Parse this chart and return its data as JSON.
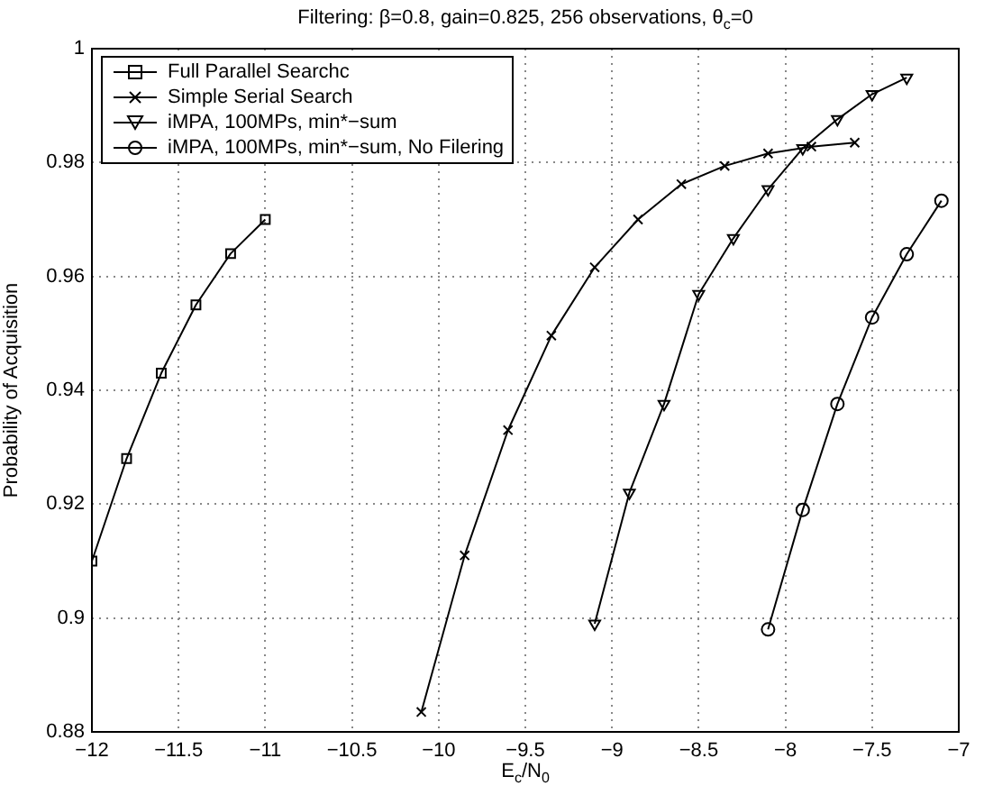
{
  "chart_data": {
    "type": "line",
    "title": "Filtering: β=0.8, gain=0.825, 256 observations, θ$_{c}$=0",
    "xlabel": "E$_{c}$/N$_{0}$",
    "ylabel": "Probability of Acquisition",
    "xlim": [
      -12,
      -7
    ],
    "xticks": [
      -12,
      -11.5,
      -11,
      -10.5,
      -10,
      -9.5,
      -9,
      -8.5,
      -8,
      -7.5,
      -7
    ],
    "ylim": [
      0.88,
      1
    ],
    "yticks": [
      0.88,
      0.9,
      0.92,
      0.94,
      0.96,
      0.98,
      1
    ],
    "grid": true,
    "legend": "top left",
    "series": [
      {
        "name": "Full Parallel Searchc",
        "color": "#000000",
        "marker": "square",
        "x": [
          -12,
          -11.8,
          -11.6,
          -11.4,
          -11.2,
          -11
        ],
        "values": [
          0.91,
          0.928,
          0.943,
          0.955,
          0.964,
          0.97
        ]
      },
      {
        "name": "Simple Serial Search",
        "color": "#000000",
        "marker": "cross",
        "x": [
          -10.1,
          -9.85,
          -9.6,
          -9.35,
          -9.1,
          -8.85,
          -8.6,
          -8.35,
          -8.1,
          -7.85,
          -7.6
        ],
        "values": [
          0.8835,
          0.911,
          0.933,
          0.9496,
          0.9616,
          0.97,
          0.9762,
          0.9794,
          0.9816,
          0.9828,
          0.9835
        ]
      },
      {
        "name": "iMPA, 100MPs, min*−sum",
        "color": "#000000",
        "marker": "triangle",
        "x": [
          -9.1,
          -8.9,
          -8.7,
          -8.5,
          -8.3,
          -8.1,
          -7.9,
          -7.7,
          -7.5,
          -7.3
        ],
        "values": [
          0.899,
          0.922,
          0.9376,
          0.9569,
          0.9667,
          0.9753,
          0.9825,
          0.9876,
          0.992,
          0.9949
        ]
      },
      {
        "name": "iMPA, 100MPs, min*−sum, No Filering",
        "color": "#000000",
        "marker": "circle",
        "x": [
          -8.1,
          -7.9,
          -7.7,
          -7.5,
          -7.3,
          -7.1
        ],
        "values": [
          0.898,
          0.919,
          0.9376,
          0.9528,
          0.9639,
          0.9733
        ]
      }
    ]
  }
}
